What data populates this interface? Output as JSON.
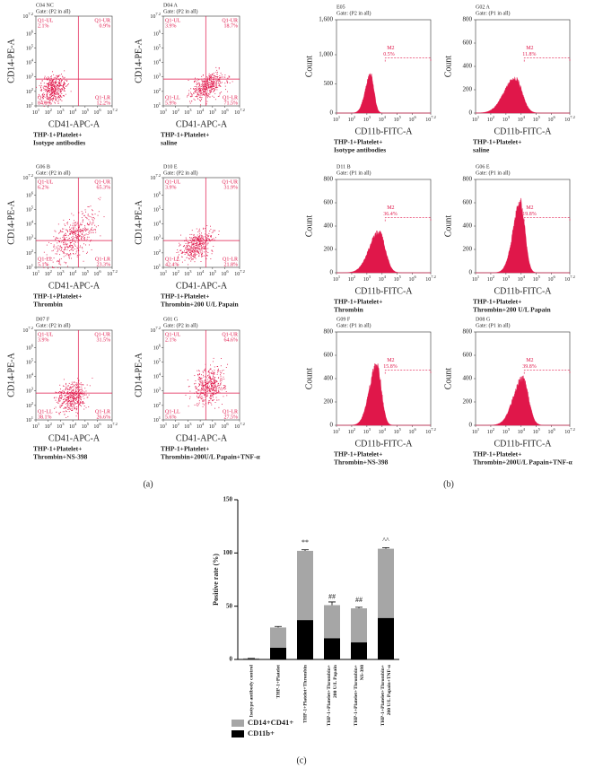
{
  "panel_a": {
    "label": "(a)",
    "x_label": "CD41-APC-A",
    "y_label": "CD14-PE-A",
    "tick_base": "10",
    "tick_exponents": [
      1,
      2,
      3,
      4,
      5,
      6,
      7.2
    ],
    "quadrant_names": [
      "Q1-UL",
      "Q1-UR",
      "Q1-LL",
      "Q1-LR"
    ],
    "plots": [
      {
        "id": "C04 NC",
        "gate": "Gate: (P2 in all)",
        "quadrant_values": [
          "2.1%",
          "0.9%",
          "84.8%",
          "12.2%"
        ],
        "caption": [
          "THP-1+Platelet+",
          "Isotype antibodies"
        ]
      },
      {
        "id": "D04 A",
        "gate": "Gate: (P2 in all)",
        "quadrant_values": [
          "3.9%",
          "18.7%",
          "5.9%",
          "71.5%"
        ],
        "caption": [
          "THP-1+Platelet+",
          "saline"
        ]
      },
      {
        "id": "G06 B",
        "gate": "Gate: (P2 in all)",
        "quadrant_values": [
          "6.2%",
          "65.3%",
          "5.1%",
          "23.3%"
        ],
        "caption": [
          "THP-1+Platelet+",
          "Thrombin"
        ]
      },
      {
        "id": "D10 E",
        "gate": "Gate: (P2 in all)",
        "quadrant_values": [
          "3.9%",
          "31.9%",
          "42.4%",
          "21.8%"
        ],
        "caption": [
          "THP-1+Platelet+",
          "Thrombin+200 U/L Papain"
        ]
      },
      {
        "id": "D07 F",
        "gate": "Gate: (P2 in all)",
        "quadrant_values": [
          "3.9%",
          "31.5%",
          "38.1%",
          "26.6%"
        ],
        "caption": [
          "THP-1+Platelet+",
          "Thrombin+NS-398"
        ]
      },
      {
        "id": "G01 G",
        "gate": "Gate: (P2 in all)",
        "quadrant_values": [
          "2.1%",
          "64.6%",
          "5.6%",
          "27.5%"
        ],
        "caption": [
          "THP-1+Platelet+",
          "Thrombin+200U/L Papain+TNF-α"
        ]
      }
    ]
  },
  "panel_b": {
    "label": "(b)",
    "x_label": "CD11b-FITC-A",
    "y_label": "Count",
    "tick_base": "10",
    "tick_exponents": [
      1,
      2,
      3,
      4,
      5,
      6,
      7.2
    ],
    "marker": "M2",
    "plots": [
      {
        "id": "E05",
        "gate": "Gate: (P2 in all)",
        "percent": "0.5%",
        "ylim": [
          0,
          1600
        ],
        "yticks": [
          0,
          500,
          {
            "value": 1000,
            "label": "1,000"
          },
          {
            "value": 1600,
            "label": "1,600"
          }
        ],
        "caption": [
          "THP-1+Platelet+",
          "Isotype antibodies"
        ]
      },
      {
        "id": "G02 A",
        "gate": "Gate: (P1 in all)",
        "percent": "11.8%",
        "ylim": [
          0,
          800
        ],
        "yticks": [
          0,
          200,
          400,
          600,
          800
        ],
        "caption": [
          "THP-1+Platelet+",
          "saline"
        ]
      },
      {
        "id": "D11 B",
        "gate": "Gate: (P1 in all)",
        "percent": "36.4%",
        "ylim": [
          0,
          800
        ],
        "yticks": [
          0,
          200,
          400,
          600,
          800
        ],
        "caption": [
          "THP-1+Platelet+",
          "Thrombin"
        ]
      },
      {
        "id": "G06 E",
        "gate": "Gate: (P1 in all)",
        "percent": "19.8%",
        "ylim": [
          0,
          800
        ],
        "yticks": [
          0,
          200,
          400,
          600,
          800
        ],
        "caption": [
          "THP-1+Platelet+",
          "Thrombin+200 U/L Papain"
        ]
      },
      {
        "id": "G09 F",
        "gate": "Gate: (P1 in all)",
        "percent": "15.8%",
        "ylim": [
          0,
          800
        ],
        "yticks": [
          0,
          200,
          400,
          600,
          800
        ],
        "caption": [
          "THP-1+Platelet+",
          "Thrombin+NS-398"
        ]
      },
      {
        "id": "D08 G",
        "gate": "Gate: (P1 in all)",
        "percent": "39.8%",
        "ylim": [
          0,
          800
        ],
        "yticks": [
          0,
          200,
          400,
          600,
          800
        ],
        "caption": [
          "THP-1+Platelet+",
          "Thrombin+200U/L Papain+TNF-α"
        ]
      }
    ]
  },
  "chart_data": {
    "type": "stacked_bar",
    "label": "(c)",
    "y_label": "Positive rate (%)",
    "categories": [
      [
        "Isotype antibody control"
      ],
      [
        "THP-1+Platelet"
      ],
      [
        "THP-1+Platelet+Thrombin"
      ],
      [
        "THP-1+Platelet+Thrombin+",
        "200 U/L Papain"
      ],
      [
        "THP-1+Platelet+Thrombin+",
        "NS-398"
      ],
      [
        "THP-1+Platelet+Thrombin+",
        "200 U/L Papain+TNF-α"
      ]
    ],
    "series": [
      {
        "name": "CD11b+",
        "color": "#000000",
        "values": [
          0.5,
          11,
          37,
          20,
          16,
          39
        ]
      },
      {
        "name": "CD14+CD41+",
        "color": "#a6a6a6",
        "values": [
          0.5,
          19,
          65,
          31,
          32,
          65
        ],
        "errors": [
          0,
          1,
          1,
          3,
          1,
          1
        ]
      }
    ],
    "annotations": [
      null,
      null,
      "**",
      "##",
      "##",
      "^^"
    ],
    "ylim": [
      0,
      150
    ],
    "yticks": [
      0,
      50,
      100,
      150
    ]
  }
}
